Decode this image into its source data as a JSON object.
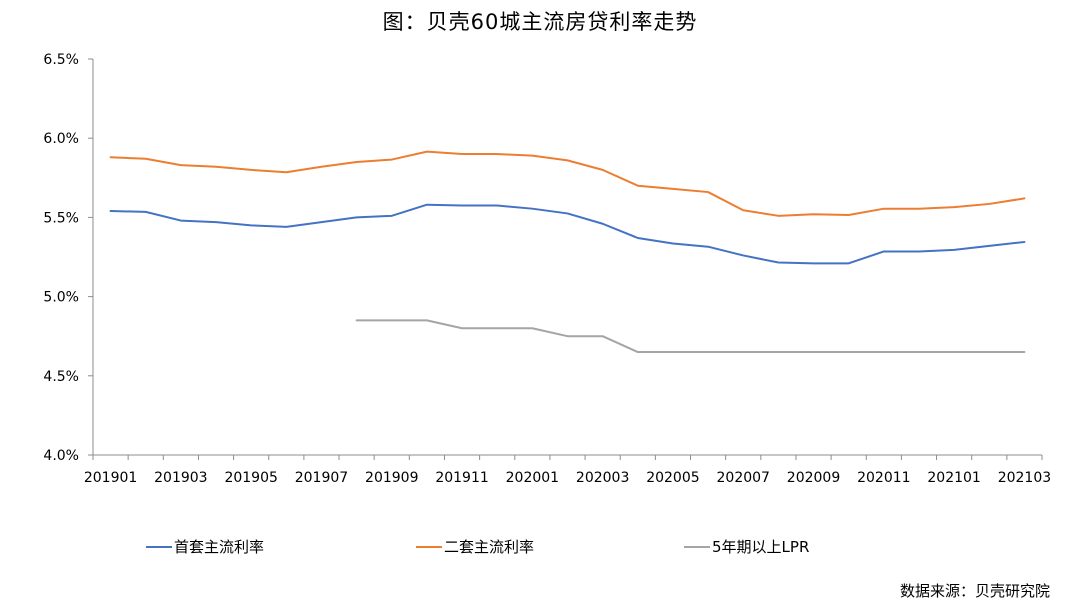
{
  "title": "图：贝壳60城主流房贷利率走势",
  "source": "数据来源：贝壳研究院",
  "chart_data": {
    "type": "line",
    "title": "图：贝壳60城主流房贷利率走势",
    "xlabel": "",
    "ylabel": "",
    "ylim": [
      4.0,
      6.5
    ],
    "y_ticks": [
      "4.0%",
      "4.5%",
      "5.0%",
      "5.5%",
      "6.0%",
      "6.5%"
    ],
    "x_tick_labels": [
      "201901",
      "201903",
      "201905",
      "201907",
      "201909",
      "201911",
      "202001",
      "202003",
      "202005",
      "202007",
      "202009",
      "202011",
      "202101",
      "202103"
    ],
    "x": [
      "201901",
      "201902",
      "201903",
      "201904",
      "201905",
      "201906",
      "201907",
      "201908",
      "201909",
      "201910",
      "201911",
      "201912",
      "202001",
      "202002",
      "202003",
      "202004",
      "202005",
      "202006",
      "202007",
      "202008",
      "202009",
      "202010",
      "202011",
      "202012",
      "202101",
      "202102",
      "202103"
    ],
    "legend_position": "bottom",
    "grid": false,
    "series": [
      {
        "name": "首套主流利率",
        "color": "#4472C4",
        "values": [
          5.54,
          5.535,
          5.48,
          5.47,
          5.45,
          5.44,
          5.47,
          5.5,
          5.51,
          5.58,
          5.575,
          5.575,
          5.555,
          5.525,
          5.46,
          5.37,
          5.335,
          5.315,
          5.26,
          5.215,
          5.21,
          5.21,
          5.285,
          5.285,
          5.295,
          5.32,
          5.345
        ]
      },
      {
        "name": "二套主流利率",
        "color": "#ED7D31",
        "values": [
          5.88,
          5.87,
          5.83,
          5.82,
          5.8,
          5.785,
          5.82,
          5.85,
          5.865,
          5.915,
          5.9,
          5.9,
          5.89,
          5.86,
          5.8,
          5.7,
          5.68,
          5.66,
          5.545,
          5.51,
          5.52,
          5.515,
          5.555,
          5.555,
          5.565,
          5.585,
          5.62
        ]
      },
      {
        "name": "5年期以上LPR",
        "color": "#A5A5A5",
        "values": [
          null,
          null,
          null,
          null,
          null,
          null,
          null,
          4.85,
          4.85,
          4.85,
          4.8,
          4.8,
          4.8,
          4.75,
          4.75,
          4.65,
          4.65,
          4.65,
          4.65,
          4.65,
          4.65,
          4.65,
          4.65,
          4.65,
          4.65,
          4.65,
          4.65
        ]
      }
    ]
  }
}
